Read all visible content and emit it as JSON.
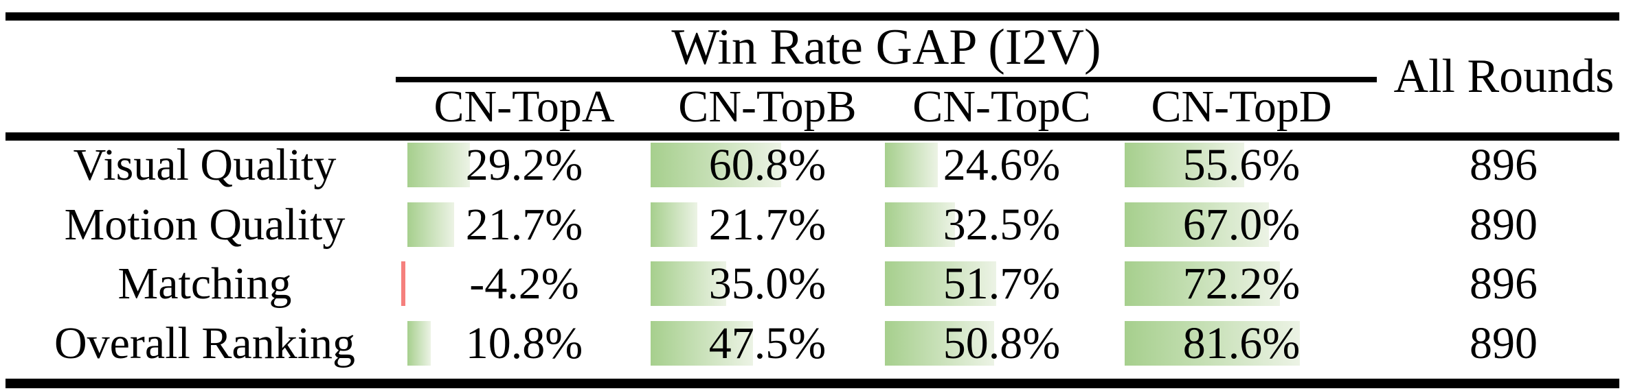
{
  "table": {
    "title": "Win Rate GAP (I2V)",
    "all_rounds_header": "All Rounds",
    "columns": [
      "CN-TopA",
      "CN-TopB",
      "CN-TopC",
      "CN-TopD"
    ],
    "rows": [
      {
        "label": "Visual Quality",
        "cells": [
          {
            "text": "29.2%",
            "value": 29.2
          },
          {
            "text": "60.8%",
            "value": 60.8
          },
          {
            "text": "24.6%",
            "value": 24.6
          },
          {
            "text": "55.6%",
            "value": 55.6
          }
        ],
        "all_rounds": "896"
      },
      {
        "label": "Motion Quality",
        "cells": [
          {
            "text": "21.7%",
            "value": 21.7
          },
          {
            "text": "21.7%",
            "value": 21.7
          },
          {
            "text": "32.5%",
            "value": 32.5
          },
          {
            "text": "67.0%",
            "value": 67.0
          }
        ],
        "all_rounds": "890"
      },
      {
        "label": "Matching",
        "cells": [
          {
            "text": "-4.2%",
            "value": -4.2
          },
          {
            "text": "35.0%",
            "value": 35.0
          },
          {
            "text": "51.7%",
            "value": 51.7
          },
          {
            "text": "72.2%",
            "value": 72.2
          }
        ],
        "all_rounds": "896"
      },
      {
        "label": "Overall Ranking",
        "cells": [
          {
            "text": "10.8%",
            "value": 10.8
          },
          {
            "text": "47.5%",
            "value": 47.5
          },
          {
            "text": "50.8%",
            "value": 50.8
          },
          {
            "text": "81.6%",
            "value": 81.6
          }
        ],
        "all_rounds": "890"
      }
    ]
  },
  "colors": {
    "bar_positive_start": "#a6cf8d",
    "bar_positive_end": "#ecf3e5",
    "bar_negative": "#f5807d",
    "rule": "#000000",
    "text": "#000000"
  },
  "chart_data": {
    "type": "table",
    "title": "Win Rate GAP (I2V)",
    "categories": [
      "Visual Quality",
      "Motion Quality",
      "Matching",
      "Overall Ranking"
    ],
    "series": [
      {
        "name": "CN-TopA",
        "values": [
          29.2,
          21.7,
          -4.2,
          10.8
        ]
      },
      {
        "name": "CN-TopB",
        "values": [
          60.8,
          21.7,
          35.0,
          47.5
        ]
      },
      {
        "name": "CN-TopC",
        "values": [
          24.6,
          32.5,
          51.7,
          50.8
        ]
      },
      {
        "name": "CN-TopD",
        "values": [
          55.6,
          67.0,
          72.2,
          81.6
        ]
      }
    ],
    "all_rounds": [
      896,
      890,
      896,
      890
    ],
    "value_unit": "%",
    "bar_scale_note": "in-cell data bars, full cell width = 100%"
  }
}
